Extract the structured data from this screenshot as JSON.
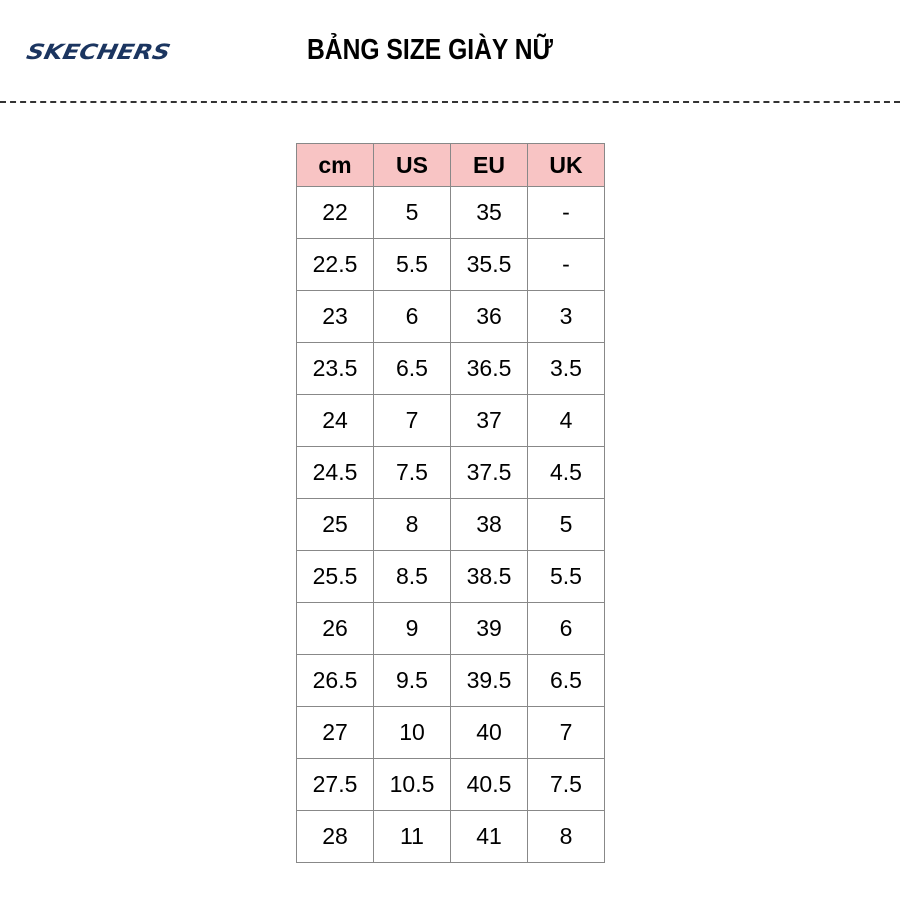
{
  "logo": "SKECHERS",
  "title": "BẢNG SIZE GIÀY NỮ",
  "colors": {
    "header_bg": "#f8c4c4",
    "logo": "#1b3560"
  },
  "table": {
    "headers": [
      "cm",
      "US",
      "EU",
      "UK"
    ],
    "rows": [
      [
        "22",
        "5",
        "35",
        "-"
      ],
      [
        "22.5",
        "5.5",
        "35.5",
        "-"
      ],
      [
        "23",
        "6",
        "36",
        "3"
      ],
      [
        "23.5",
        "6.5",
        "36.5",
        "3.5"
      ],
      [
        "24",
        "7",
        "37",
        "4"
      ],
      [
        "24.5",
        "7.5",
        "37.5",
        "4.5"
      ],
      [
        "25",
        "8",
        "38",
        "5"
      ],
      [
        "25.5",
        "8.5",
        "38.5",
        "5.5"
      ],
      [
        "26",
        "9",
        "39",
        "6"
      ],
      [
        "26.5",
        "9.5",
        "39.5",
        "6.5"
      ],
      [
        "27",
        "10",
        "40",
        "7"
      ],
      [
        "27.5",
        "10.5",
        "40.5",
        "7.5"
      ],
      [
        "28",
        "11",
        "41",
        "8"
      ]
    ]
  }
}
